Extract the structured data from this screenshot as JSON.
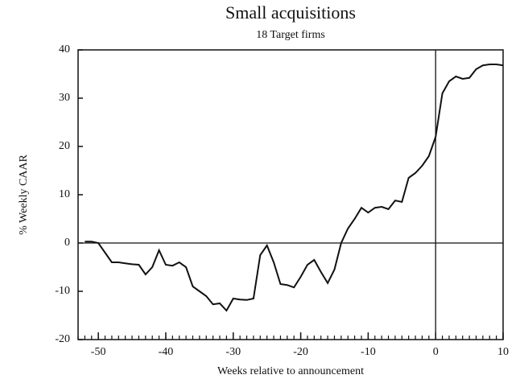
{
  "chart_data": {
    "type": "line",
    "title": "Small acquisitions",
    "subtitle": "18 Target firms",
    "x_label": "Weeks relative to announcement",
    "y_label": "% Weekly CAAR",
    "x": [
      -52,
      -51,
      -50,
      -49,
      -48,
      -47,
      -46,
      -45,
      -44,
      -43,
      -42,
      -41,
      -40,
      -39,
      -38,
      -37,
      -36,
      -35,
      -34,
      -33,
      -32,
      -31,
      -30,
      -29,
      -28,
      -27,
      -26,
      -25,
      -24,
      -23,
      -22,
      -21,
      -20,
      -19,
      -18,
      -17,
      -16,
      -15,
      -14,
      -13,
      -12,
      -11,
      -10,
      -9,
      -8,
      -7,
      -6,
      -5,
      -4,
      -3,
      -2,
      -1,
      0,
      1,
      2,
      3,
      4,
      5,
      6,
      7,
      8,
      9,
      10
    ],
    "series": [
      {
        "color": "#111111",
        "values": [
          0.3,
          0.3,
          0,
          -2,
          -4,
          -4,
          -4.2,
          -4.4,
          -4.5,
          -6.5,
          -5,
          -1.5,
          -4.5,
          -4.7,
          -4,
          -5,
          -9,
          -10,
          -11,
          -12.7,
          -12.5,
          -14,
          -11.5,
          -11.7,
          -11.8,
          -11.5,
          -2.5,
          -0.5,
          -4,
          -8.5,
          -8.7,
          -9.2,
          -7,
          -4.5,
          -3.5,
          -6,
          -8.3,
          -5.5,
          0,
          3,
          5,
          7.3,
          6.3,
          7.3,
          7.5,
          7,
          8.8,
          8.5,
          13.5,
          14.5,
          16,
          18,
          22,
          31,
          33.5,
          34.5,
          34,
          34.2,
          36,
          36.8,
          37,
          37,
          36.8
        ]
      }
    ],
    "xlim": [
      -53,
      10
    ],
    "ylim": [
      -20,
      40
    ],
    "xticks": [
      -50,
      -40,
      -30,
      -20,
      -10,
      0,
      10
    ],
    "yticks": [
      -20,
      -10,
      0,
      10,
      20,
      30,
      40
    ],
    "reference_lines": {
      "x": 0,
      "y": 0
    },
    "minor_x_step": 1
  }
}
